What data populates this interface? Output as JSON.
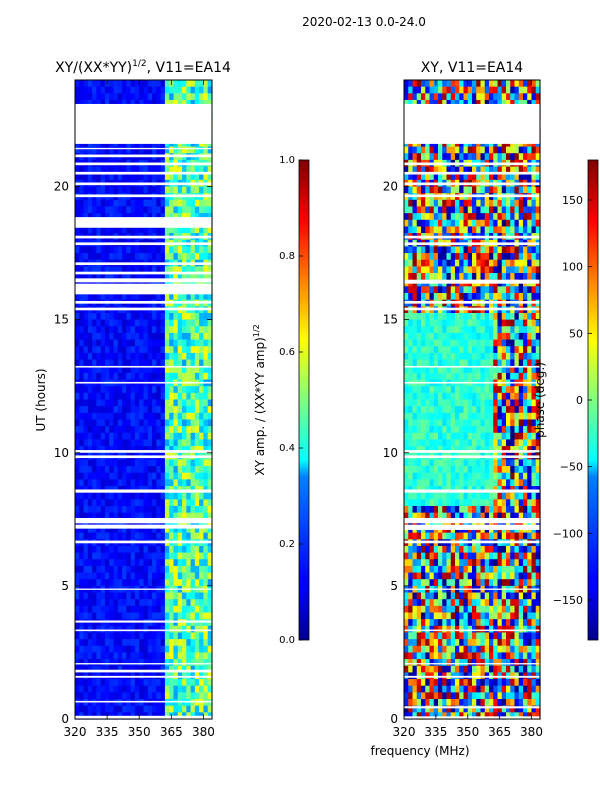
{
  "figure": {
    "suptitle": "2020-02-13 0.0-24.0",
    "xlabel": "frequency (MHz)",
    "colors": {
      "background": "#ffffff",
      "gap": "#ffffff",
      "axis": "#000000"
    }
  },
  "chart_data": [
    {
      "type": "heatmap",
      "title_base": "XY/(XX*YY)",
      "title_exp": "1/2",
      "title_suffix": ", V11=EA14",
      "ylabel": "UT (hours)",
      "xlim": [
        320,
        384
      ],
      "ylim": [
        0,
        24
      ],
      "xticks": [
        320,
        335,
        350,
        365,
        380
      ],
      "yticks": [
        0,
        5,
        10,
        15,
        20
      ],
      "colorbar": {
        "label_base": "XY amp. / (XX*YY amp)",
        "label_exp": "1/2",
        "range": [
          0.0,
          1.0
        ],
        "ticks": [
          "0.0",
          "0.2",
          "0.4",
          "0.6",
          "0.8",
          "1.0"
        ],
        "colormap": "jet"
      },
      "flagged_hours": [
        [
          0.0,
          0.12
        ],
        [
          0.62,
          0.68
        ],
        [
          1.55,
          1.62
        ],
        [
          1.75,
          1.85
        ],
        [
          2.05,
          2.1
        ],
        [
          3.3,
          3.36
        ],
        [
          3.62,
          3.7
        ],
        [
          4.85,
          4.9
        ],
        [
          6.6,
          6.7
        ],
        [
          7.15,
          7.3
        ],
        [
          7.35,
          7.55
        ],
        [
          8.5,
          8.62
        ],
        [
          9.8,
          9.9
        ],
        [
          10.0,
          10.1
        ],
        [
          12.6,
          12.66
        ],
        [
          13.2,
          13.26
        ],
        [
          15.35,
          15.45
        ],
        [
          15.6,
          15.7
        ],
        [
          15.95,
          16.35
        ],
        [
          16.4,
          16.55
        ],
        [
          16.7,
          16.8
        ],
        [
          17.05,
          17.15
        ],
        [
          17.8,
          17.9
        ],
        [
          18.05,
          18.15
        ],
        [
          18.45,
          18.85
        ],
        [
          19.6,
          19.7
        ],
        [
          20.05,
          20.15
        ],
        [
          20.45,
          20.55
        ],
        [
          20.8,
          20.9
        ],
        [
          21.1,
          21.2
        ],
        [
          21.4,
          21.45
        ],
        [
          21.6,
          23.1
        ]
      ],
      "amplitude_profile": {
        "quiet_band_mhz": [
          320,
          362
        ],
        "quiet_level": 0.08,
        "active_band_mhz": [
          362,
          384
        ],
        "active_level": 0.45
      }
    },
    {
      "type": "heatmap",
      "title": "XY, V11=EA14",
      "xlim": [
        320,
        384
      ],
      "ylim": [
        0,
        24
      ],
      "xticks": [
        320,
        335,
        350,
        365,
        380
      ],
      "yticks": [
        0,
        5,
        10,
        15,
        20
      ],
      "colorbar": {
        "label": "phase (deg.)",
        "range": [
          -180,
          180
        ],
        "ticks": [
          "−150",
          "−100",
          "−50",
          "0",
          "50",
          "100",
          "150"
        ],
        "tick_values": [
          -150,
          -100,
          -50,
          0,
          50,
          100,
          150
        ],
        "colormap": "jet"
      },
      "flagged_hours": [
        [
          0.0,
          0.1
        ],
        [
          0.4,
          0.48
        ],
        [
          1.55,
          1.62
        ],
        [
          2.05,
          2.1
        ],
        [
          3.3,
          3.36
        ],
        [
          4.85,
          4.9
        ],
        [
          6.6,
          6.7
        ],
        [
          7.1,
          7.3
        ],
        [
          7.35,
          7.55
        ],
        [
          8.5,
          8.62
        ],
        [
          9.8,
          9.9
        ],
        [
          10.0,
          10.1
        ],
        [
          12.6,
          12.66
        ],
        [
          13.2,
          13.26
        ],
        [
          15.35,
          15.45
        ],
        [
          15.6,
          15.7
        ],
        [
          16.35,
          16.5
        ],
        [
          17.8,
          17.9
        ],
        [
          18.05,
          18.15
        ],
        [
          19.6,
          19.7
        ],
        [
          20.05,
          20.15
        ],
        [
          20.45,
          20.55
        ],
        [
          20.8,
          20.9
        ],
        [
          21.6,
          23.1
        ]
      ],
      "phase_profile": {
        "calm_hours": [
          8.0,
          15.3
        ],
        "calm_phase_deg": -30,
        "noisy_hours": [
          [
            0,
            8
          ],
          [
            15.3,
            24
          ]
        ]
      }
    }
  ]
}
